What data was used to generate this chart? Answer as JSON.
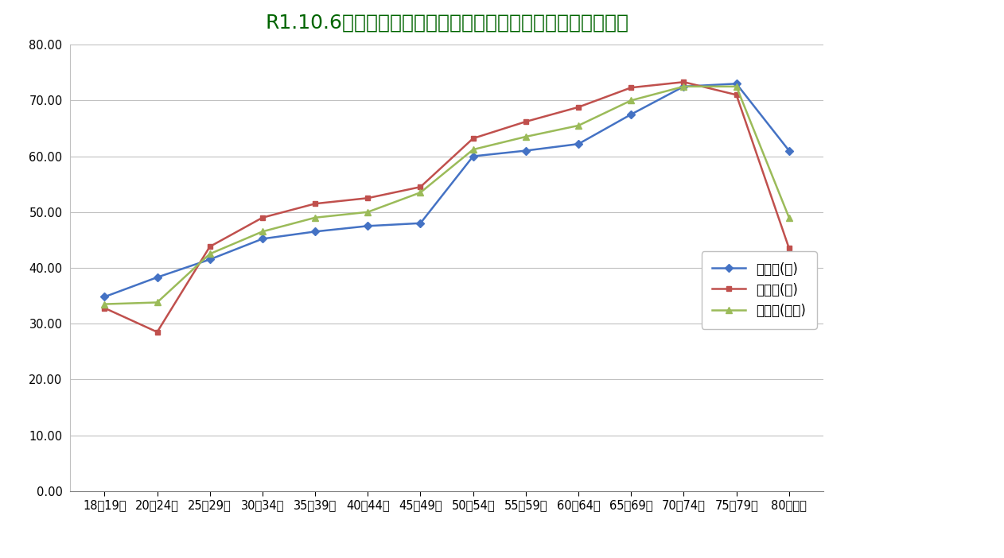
{
  "title": "R1.10.6執行　むつ市議会議員一般選挙　年齢別男女別投票率",
  "categories": [
    "18～19歳",
    "20～24歳",
    "25～29歳",
    "30～34歳",
    "35～39歳",
    "40～44歳",
    "45～49歳",
    "50～54歳",
    "55～59歳",
    "60～64歳",
    "65～69歳",
    "70～74歳",
    "75～79歳",
    "80歳以上"
  ],
  "male": [
    34.8,
    38.3,
    41.5,
    45.2,
    46.5,
    47.5,
    48.0,
    60.0,
    61.0,
    62.2,
    67.5,
    72.5,
    73.0,
    61.0
  ],
  "female": [
    32.8,
    28.5,
    43.8,
    49.0,
    51.5,
    52.5,
    54.5,
    63.2,
    66.2,
    68.8,
    72.3,
    73.3,
    71.0,
    43.5
  ],
  "total": [
    33.5,
    33.8,
    42.5,
    46.5,
    49.0,
    50.0,
    53.5,
    61.2,
    63.5,
    65.5,
    70.0,
    72.5,
    72.5,
    49.0
  ],
  "male_color": "#4472c4",
  "female_color": "#c0504d",
  "total_color": "#9bbb59",
  "male_label": "投票率(男)",
  "female_label": "投票率(女)",
  "total_label": "投票率(全体)",
  "ylim_min": 0.0,
  "ylim_max": 80.0,
  "yticks": [
    0.0,
    10.0,
    20.0,
    30.0,
    40.0,
    50.0,
    60.0,
    70.0,
    80.0
  ],
  "background_color": "#ffffff",
  "plot_bg_color": "#ffffff",
  "title_color": "#006400",
  "title_fontsize": 18
}
